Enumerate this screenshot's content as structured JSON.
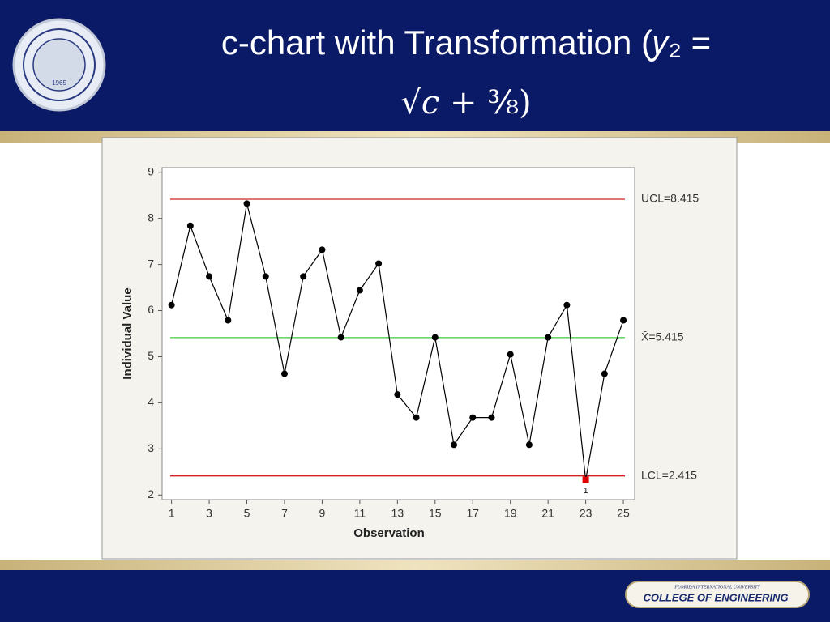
{
  "header": {
    "title_lines": [
      "c-chart with Transformation (𝑦₂ =",
      "√𝑐 + ³⁄₈)"
    ],
    "seal_year": "1965"
  },
  "footer": {
    "university": "FLORIDA INTERNATIONAL UNIVERSITY",
    "college": "COLLEGE OF ENGINEERING"
  },
  "chart_data": {
    "type": "line",
    "x_label": "Observation",
    "y_label": "Individual Value",
    "x": [
      1,
      2,
      3,
      4,
      5,
      6,
      7,
      8,
      9,
      10,
      11,
      12,
      13,
      14,
      15,
      16,
      17,
      18,
      19,
      20,
      21,
      22,
      23,
      24,
      25
    ],
    "series": [
      {
        "name": "Individual Value",
        "color": "#000000",
        "values": [
          6.12,
          7.84,
          6.74,
          5.79,
          8.32,
          6.74,
          4.63,
          6.74,
          7.32,
          5.42,
          6.44,
          7.02,
          4.18,
          3.68,
          5.42,
          3.09,
          3.68,
          3.68,
          5.05,
          3.09,
          5.42,
          6.12,
          2.33,
          4.63,
          5.79
        ]
      }
    ],
    "highlight": {
      "x": 23,
      "color": "#e00000",
      "label": "1"
    },
    "control_lines": [
      {
        "label": "UCL=8.415",
        "value": 8.415,
        "color": "#d42020"
      },
      {
        "label": "X̄=5.415",
        "value": 5.415,
        "color": "#3ccc3c"
      },
      {
        "label": "LCL=2.415",
        "value": 2.415,
        "color": "#d42020"
      }
    ],
    "xlim": [
      0.5,
      25.6
    ],
    "xticks": [
      1,
      3,
      5,
      7,
      9,
      11,
      13,
      15,
      17,
      19,
      21,
      23,
      25
    ],
    "ylim": [
      1.9,
      9.1
    ],
    "yticks": [
      2,
      3,
      4,
      5,
      6,
      7,
      8,
      9
    ]
  }
}
